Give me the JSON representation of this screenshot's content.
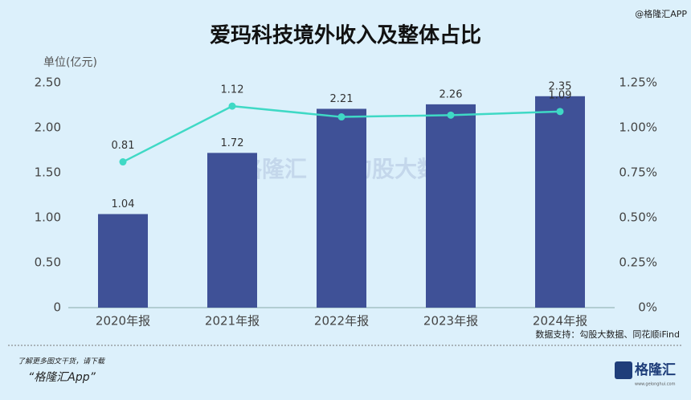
{
  "chart_data": {
    "type": "bar-line",
    "title": "爱玛科技境外收入及整体占比",
    "y_label": "单位(亿元)",
    "categories": [
      "2020年报",
      "2021年报",
      "2022年报",
      "2023年报",
      "2024年报"
    ],
    "series": [
      {
        "type": "bar",
        "color": "#3f5197",
        "values": [
          1.04,
          1.72,
          2.21,
          2.26,
          2.35
        ]
      },
      {
        "type": "line",
        "axis": "y2",
        "color": "#3fd9c5",
        "values": [
          0.81,
          1.12,
          1.06,
          1.07,
          1.09
        ],
        "value_labels": [
          "0.81",
          "1.12",
          null,
          null,
          "1.09"
        ]
      }
    ],
    "ylim": [
      0,
      2.5
    ],
    "yticks": [
      0,
      {
        "value": 0.5,
        "label": "0.50"
      },
      {
        "value": 1,
        "label": "1.00"
      },
      {
        "value": 1.5,
        "label": "1.50"
      },
      {
        "value": 2,
        "label": "2.00"
      },
      {
        "value": 2.5,
        "label": "2.50"
      }
    ],
    "y2lim": [
      0,
      1.25
    ],
    "y2ticks": [
      {
        "value": 0,
        "label": "0%"
      },
      {
        "value": 0.25,
        "label": "0.25%"
      },
      {
        "value": 0.5,
        "label": "0.50%"
      },
      {
        "value": 0.75,
        "label": "0.75%"
      },
      {
        "value": 1,
        "label": "1.00%"
      },
      {
        "value": 1.25,
        "label": "1.25%"
      }
    ],
    "source": "数据支持：勾股大数据、同花顺iFind"
  },
  "watermark": "@格隆汇APP",
  "center_watermark": {
    "brand": "格隆汇",
    "partner": "勾股大数据"
  },
  "footer": {
    "line1": "了解更多图文干货，请下载",
    "line2": "“格隆汇App”",
    "logo": "格隆汇",
    "site": "www.gelonghui.com"
  }
}
